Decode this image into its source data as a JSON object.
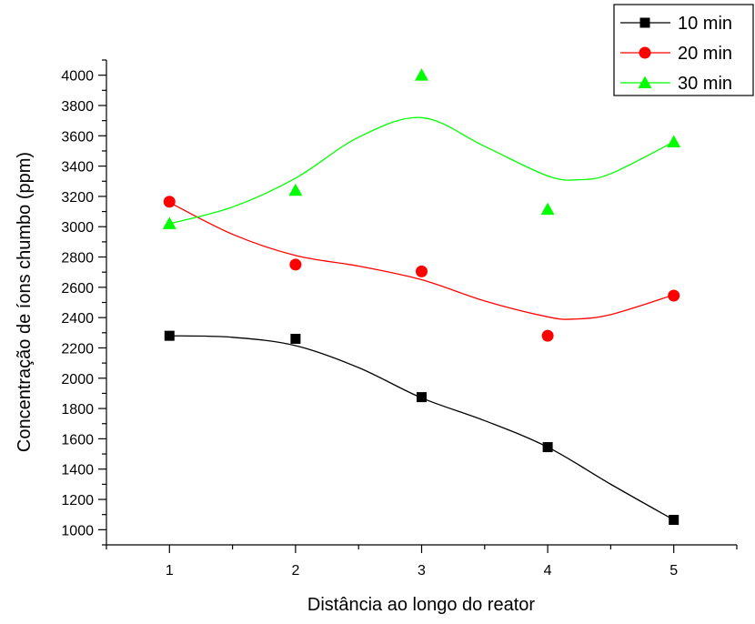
{
  "chart_data": {
    "type": "scatter",
    "title": "",
    "xlabel": "Distância ao longo do reator",
    "ylabel": "Concentração de íons chumbo (ppm)",
    "xlim": [
      0.5,
      5.5
    ],
    "ylim": [
      900,
      4100
    ],
    "xticks": [
      1,
      2,
      3,
      4,
      5
    ],
    "yticks": [
      1000,
      1200,
      1400,
      1600,
      1800,
      2000,
      2200,
      2400,
      2600,
      2800,
      3000,
      3200,
      3400,
      3600,
      3800,
      4000
    ],
    "legend_position": "top-right",
    "grid": false,
    "series": [
      {
        "name": "10 min",
        "color": "#000000",
        "marker": "square",
        "x": [
          1,
          2,
          3,
          4,
          5
        ],
        "y": [
          2280,
          2260,
          1875,
          1545,
          1065
        ],
        "fit": {
          "x": [
            1.0,
            1.5,
            2.0,
            2.5,
            3.0,
            3.5,
            4.0,
            4.5,
            5.0
          ],
          "y": [
            2280,
            2270,
            2215,
            2070,
            1870,
            1720,
            1545,
            1300,
            1065
          ]
        }
      },
      {
        "name": "20 min",
        "color": "#ff0000",
        "marker": "circle",
        "x": [
          1,
          2,
          3,
          4,
          5
        ],
        "y": [
          3165,
          2750,
          2705,
          2280,
          2545
        ],
        "fit": {
          "x": [
            1.0,
            1.5,
            2.0,
            2.5,
            3.0,
            3.5,
            4.0,
            4.2,
            4.5,
            5.0
          ],
          "y": [
            3160,
            2950,
            2810,
            2740,
            2650,
            2510,
            2405,
            2390,
            2420,
            2550
          ]
        }
      },
      {
        "name": "30 min",
        "color": "#00ff00",
        "marker": "triangle",
        "x": [
          1,
          2,
          3,
          4,
          5
        ],
        "y": [
          3020,
          3240,
          4000,
          3115,
          3560
        ],
        "fit": {
          "x": [
            1.0,
            1.5,
            2.0,
            2.5,
            3.0,
            3.5,
            4.0,
            4.25,
            4.5,
            5.0
          ],
          "y": [
            3020,
            3130,
            3320,
            3590,
            3720,
            3530,
            3335,
            3310,
            3350,
            3560
          ]
        }
      }
    ]
  }
}
